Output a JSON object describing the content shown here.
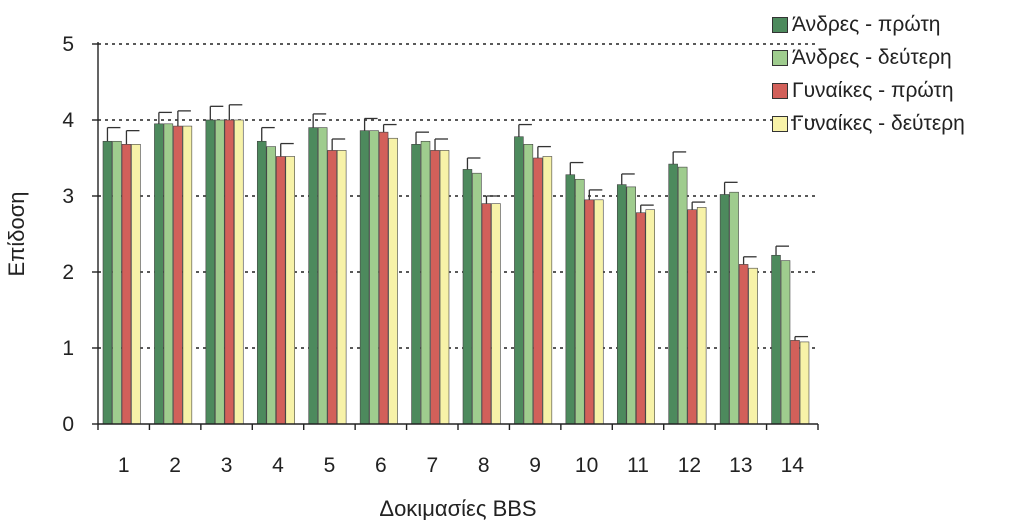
{
  "chart_data": {
    "type": "bar",
    "xlabel": "Δοκιμασίες BBS",
    "ylabel": "Επίδοση",
    "ylim": [
      0,
      5
    ],
    "yticks": [
      0,
      1,
      2,
      3,
      4,
      5
    ],
    "grid": "dotted horizontal lines at 1–5",
    "legend_position": "top-right",
    "categories": [
      "1",
      "2",
      "3",
      "4",
      "5",
      "6",
      "7",
      "8",
      "9",
      "10",
      "11",
      "12",
      "13",
      "14"
    ],
    "series": [
      {
        "name": "Άνδρες - πρώτη",
        "color": "#4d8a5d",
        "values": [
          3.72,
          3.95,
          4.0,
          3.72,
          3.9,
          3.86,
          3.68,
          3.35,
          3.78,
          3.28,
          3.15,
          3.42,
          3.02,
          2.22
        ],
        "errors": [
          0.18,
          0.15,
          0.18,
          0.18,
          0.18,
          0.16,
          0.16,
          0.15,
          0.16,
          0.16,
          0.14,
          0.16,
          0.16,
          0.12
        ]
      },
      {
        "name": "Άνδρες - δεύτερη",
        "color": "#9fcc8e",
        "values": [
          3.72,
          3.95,
          4.0,
          3.65,
          3.9,
          3.86,
          3.72,
          3.3,
          3.68,
          3.22,
          3.12,
          3.38,
          3.05,
          2.15
        ]
      },
      {
        "name": "Γυναίκες - πρώτη",
        "color": "#d2605a",
        "values": [
          3.68,
          3.92,
          4.0,
          3.52,
          3.6,
          3.84,
          3.6,
          2.9,
          3.5,
          2.95,
          2.78,
          2.82,
          2.1,
          1.1
        ],
        "errors": [
          0.18,
          0.2,
          0.2,
          0.17,
          0.15,
          0.1,
          0.15,
          0.1,
          0.15,
          0.13,
          0.1,
          0.1,
          0.1,
          0.05
        ]
      },
      {
        "name": "Γυναίκες - δεύτερη",
        "color": "#f7f2a8",
        "values": [
          3.68,
          3.92,
          4.0,
          3.52,
          3.6,
          3.76,
          3.6,
          2.9,
          3.52,
          2.95,
          2.82,
          2.85,
          2.05,
          1.08
        ]
      }
    ]
  }
}
